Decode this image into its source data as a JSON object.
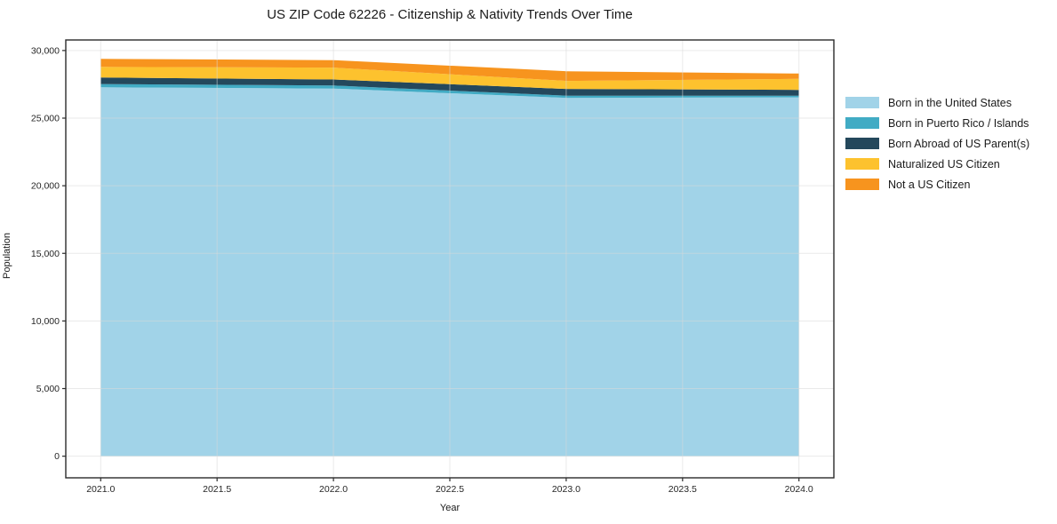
{
  "chart_data": {
    "type": "area",
    "stacked": true,
    "title": "US ZIP Code 62226 - Citizenship & Nativity Trends Over Time",
    "xlabel": "Year",
    "ylabel": "Population",
    "x": [
      2021,
      2022,
      2023,
      2024
    ],
    "series": [
      {
        "name": "Born in the United States",
        "color": "#A1D3E8",
        "values": [
          27280,
          27190,
          26500,
          26540
        ]
      },
      {
        "name": "Born in Puerto Rico / Islands",
        "color": "#41ABC4",
        "values": [
          240,
          220,
          160,
          120
        ]
      },
      {
        "name": "Born Abroad of US Parent(s)",
        "color": "#24485C",
        "values": [
          480,
          450,
          500,
          430
        ]
      },
      {
        "name": "Naturalized US Citizen",
        "color": "#FDC22E",
        "values": [
          790,
          880,
          590,
          810
        ]
      },
      {
        "name": "Not a US Citizen",
        "color": "#F7941E",
        "values": [
          590,
          550,
          720,
          400
        ]
      }
    ],
    "totals": [
      29380,
      29290,
      28470,
      28300
    ],
    "xlim": [
      2020.85,
      2024.15
    ],
    "ylim": [
      -1600,
      30780
    ],
    "xticks": {
      "values": [
        2021.0,
        2021.5,
        2022.0,
        2022.5,
        2023.0,
        2023.5,
        2024.0
      ],
      "labels": [
        "2021.0",
        "2021.5",
        "2022.0",
        "2022.5",
        "2023.0",
        "2023.5",
        "2024.0"
      ]
    },
    "yticks": {
      "values": [
        0,
        5000,
        10000,
        15000,
        20000,
        25000,
        30000
      ],
      "labels": [
        "0",
        "5,000",
        "10,000",
        "15,000",
        "20,000",
        "25,000",
        "30,000"
      ]
    },
    "grid": true,
    "legend_position": "right-outside",
    "colors": {
      "spine": "#2b2b2b",
      "grid": "#d9d9d9",
      "tick_text": "#262626"
    }
  }
}
